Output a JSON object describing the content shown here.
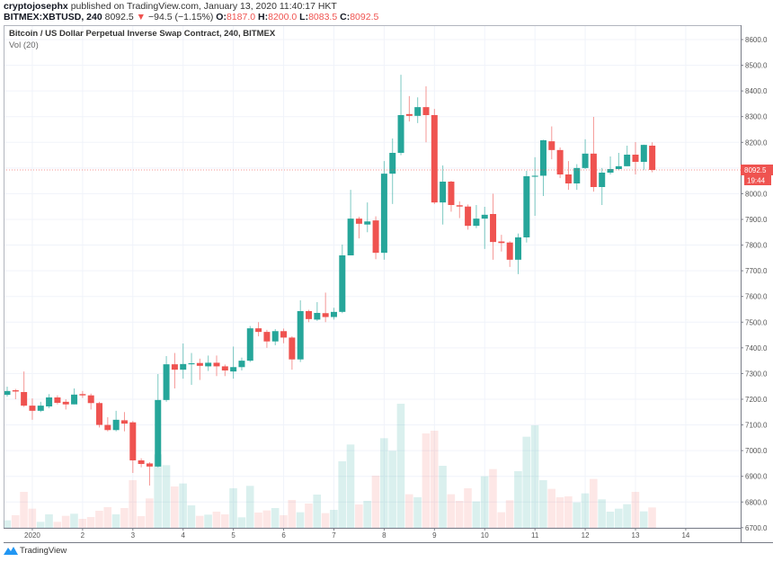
{
  "header": {
    "publisher": "cryptojosephx",
    "published_text": "published on TradingView.com, January 13, 2020 11:40:17 HKT",
    "symbol": "BITMEX:XBTUSD, 240",
    "last": "8092.5",
    "change_icon": "triangle-down-icon",
    "change": "−94.5 (−1.15%)",
    "o_label": "O:",
    "o_value": "8187.0",
    "h_label": "H:",
    "h_value": "8200.0",
    "l_label": "L:",
    "l_value": "8083.5",
    "c_label": "C:",
    "c_value": "8092.5"
  },
  "legend": {
    "title": "Bitcoin / US Dollar Perpetual Inverse Swap Contract, 240, BITMEX",
    "indicator": "Vol (20)"
  },
  "price_axis": {
    "labels": [
      "8600.0",
      "8500.0",
      "8400.0",
      "8300.0",
      "8200.0",
      "8000.0",
      "7900.0",
      "7800.0",
      "7700.0",
      "7600.0",
      "7500.0",
      "7400.0",
      "7300.0",
      "7200.0",
      "7100.0",
      "7000.0",
      "6900.0",
      "6800.0",
      "6700.0"
    ],
    "current_price": "8092.5",
    "countdown": "19:44"
  },
  "time_axis": {
    "labels": [
      "2020",
      "2",
      "3",
      "4",
      "5",
      "6",
      "7",
      "8",
      "9",
      "10",
      "11",
      "12",
      "13",
      "14"
    ]
  },
  "logo": {
    "text": "TradingView"
  },
  "colors": {
    "up": "#26a69a",
    "down": "#ef5350",
    "grid": "#f0f3fa",
    "axis": "#b2b5be"
  },
  "chart_data": {
    "type": "candlestick",
    "interval": "240",
    "ylim": [
      6700,
      8650
    ],
    "grid": true,
    "ohlc": [
      [
        7217,
        7249,
        7210,
        7232
      ],
      [
        7235,
        7240,
        7200,
        7230
      ],
      [
        7228,
        7308,
        7170,
        7175
      ],
      [
        7175,
        7203,
        7120,
        7155
      ],
      [
        7155,
        7190,
        7150,
        7175
      ],
      [
        7172,
        7220,
        7165,
        7207
      ],
      [
        7207,
        7215,
        7180,
        7186
      ],
      [
        7190,
        7200,
        7160,
        7180
      ],
      [
        7180,
        7242,
        7180,
        7218
      ],
      [
        7220,
        7232,
        7205,
        7215
      ],
      [
        7215,
        7222,
        7160,
        7185
      ],
      [
        7185,
        7190,
        7090,
        7100
      ],
      [
        7100,
        7130,
        7075,
        7080
      ],
      [
        7080,
        7155,
        7075,
        7120
      ],
      [
        7118,
        7150,
        7075,
        7105
      ],
      [
        7110,
        7115,
        6913,
        6962
      ],
      [
        6962,
        6970,
        6935,
        6948
      ],
      [
        6950,
        6955,
        6864,
        6938
      ],
      [
        6938,
        7298,
        6935,
        7197
      ],
      [
        7197,
        7368,
        7190,
        7336
      ],
      [
        7336,
        7380,
        7242,
        7315
      ],
      [
        7315,
        7417,
        7280,
        7337
      ],
      [
        7336,
        7380,
        7256,
        7340
      ],
      [
        7341,
        7358,
        7275,
        7330
      ],
      [
        7328,
        7370,
        7310,
        7342
      ],
      [
        7342,
        7370,
        7290,
        7328
      ],
      [
        7328,
        7335,
        7290,
        7312
      ],
      [
        7308,
        7405,
        7280,
        7325
      ],
      [
        7325,
        7362,
        7312,
        7350
      ],
      [
        7350,
        7485,
        7345,
        7476
      ],
      [
        7476,
        7500,
        7445,
        7462
      ],
      [
        7462,
        7470,
        7400,
        7425
      ],
      [
        7425,
        7473,
        7410,
        7465
      ],
      [
        7465,
        7475,
        7418,
        7440
      ],
      [
        7440,
        7445,
        7315,
        7355
      ],
      [
        7355,
        7585,
        7345,
        7543
      ],
      [
        7543,
        7548,
        7500,
        7512
      ],
      [
        7510,
        7578,
        7505,
        7536
      ],
      [
        7535,
        7615,
        7500,
        7520
      ],
      [
        7520,
        7556,
        7510,
        7540
      ],
      [
        7540,
        7802,
        7535,
        7760
      ],
      [
        7760,
        8015,
        7760,
        7903
      ],
      [
        7903,
        7910,
        7826,
        7883
      ],
      [
        7880,
        7966,
        7850,
        7892
      ],
      [
        7896,
        7912,
        7745,
        7770
      ],
      [
        7770,
        8127,
        7743,
        8078
      ],
      [
        8078,
        8215,
        7960,
        8159
      ],
      [
        8159,
        8463,
        8150,
        8306
      ],
      [
        8310,
        8380,
        8281,
        8303
      ],
      [
        8303,
        8375,
        8275,
        8337
      ],
      [
        8337,
        8418,
        8200,
        8306
      ],
      [
        8306,
        8330,
        7960,
        7966
      ],
      [
        7966,
        8110,
        7880,
        8047
      ],
      [
        8047,
        8050,
        7930,
        7956
      ],
      [
        7955,
        7970,
        7905,
        7950
      ],
      [
        7950,
        7958,
        7860,
        7875
      ],
      [
        7875,
        7956,
        7866,
        7903
      ],
      [
        7903,
        7949,
        7785,
        7918
      ],
      [
        7921,
        8000,
        7743,
        7812
      ],
      [
        7814,
        7840,
        7775,
        7808
      ],
      [
        7810,
        7815,
        7715,
        7743
      ],
      [
        7743,
        7845,
        7687,
        7830
      ],
      [
        7830,
        8089,
        7810,
        8068
      ],
      [
        8066,
        8142,
        7914,
        8070
      ],
      [
        8070,
        8210,
        7991,
        8208
      ],
      [
        8204,
        8262,
        8134,
        8170
      ],
      [
        8170,
        8180,
        8061,
        8075
      ],
      [
        8075,
        8127,
        8015,
        8040
      ],
      [
        8040,
        8115,
        8015,
        8100
      ],
      [
        8100,
        8212,
        8096,
        8156
      ],
      [
        8156,
        8299,
        8008,
        8026
      ],
      [
        8026,
        8100,
        7956,
        8082
      ],
      [
        8082,
        8145,
        8075,
        8096
      ],
      [
        8096,
        8159,
        8092,
        8107
      ],
      [
        8107,
        8187,
        8107,
        8152
      ],
      [
        8152,
        8201,
        8075,
        8124
      ],
      [
        8124,
        8191,
        8092,
        8190
      ],
      [
        8187,
        8200,
        8083.5,
        8092.5
      ]
    ],
    "volume_relative": [
      25,
      42,
      120,
      64,
      20,
      45,
      20,
      40,
      47,
      30,
      36,
      57,
      69,
      45,
      66,
      159,
      39,
      98,
      245,
      209,
      138,
      148,
      75,
      40,
      44,
      54,
      45,
      132,
      35,
      140,
      51,
      58,
      66,
      42,
      93,
      52,
      81,
      111,
      49,
      60,
      222,
      278,
      78,
      90,
      174,
      299,
      257,
      414,
      112,
      102,
      315,
      324,
      207,
      112,
      90,
      132,
      88,
      172,
      196,
      52,
      92,
      189,
      304,
      342,
      159,
      130,
      102,
      105,
      85,
      115,
      163,
      95,
      54,
      64,
      79,
      120,
      55,
      68
    ]
  }
}
